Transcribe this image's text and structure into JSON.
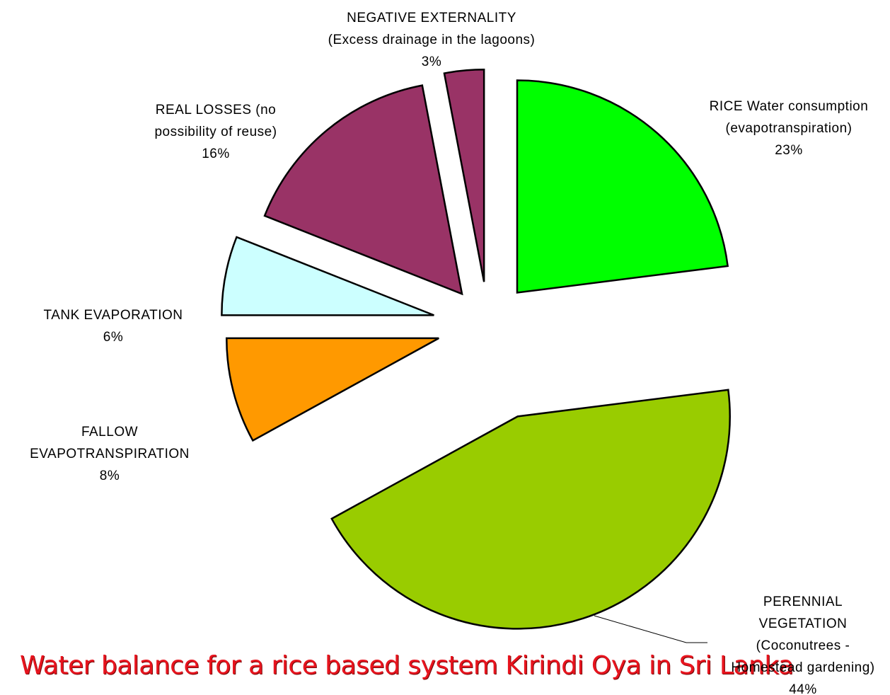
{
  "chart_data": {
    "type": "pie",
    "title": "Water balance for a rice based system Kirindi Oya in Sri Lanka",
    "categories": [
      "RICE Water consumption (evapotranspiration)",
      "PERENNIAL VEGETATION (Coconutrees - Homestead gardening)",
      "FALLOW EVAPOTRANSPIRATION",
      "TANK EVAPORATION",
      "REAL LOSSES (no possibility of reuse)",
      "NEGATIVE EXTERNALITY (Excess drainage in the lagoons)"
    ],
    "values": [
      23,
      44,
      8,
      6,
      16,
      3
    ],
    "value_labels": [
      "23%",
      "44%",
      "8%",
      "6%",
      "16%",
      "3%"
    ],
    "colors": [
      "#00ff00",
      "#99cc00",
      "#ff9900",
      "#ccffff",
      "#993366",
      "#993366"
    ]
  }
}
